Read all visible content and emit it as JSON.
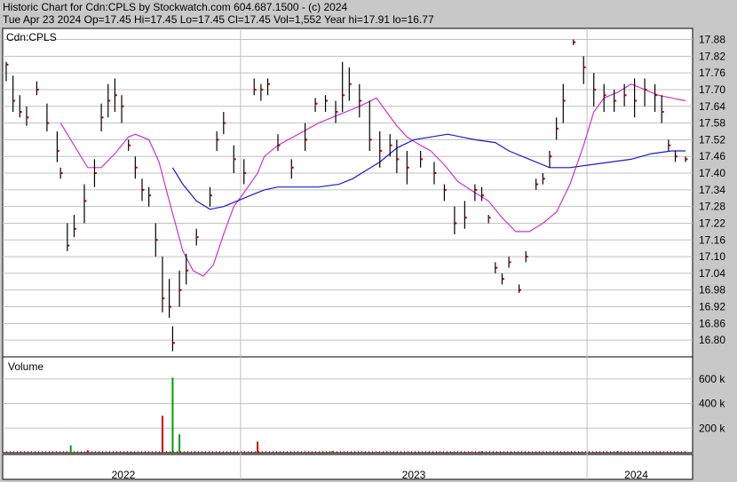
{
  "header": {
    "line1": "Historic Chart for Cdn:CPLS by Stockwatch.com 604.687.1500 - (c) 2024",
    "line2": "Tue Apr 23 2024  Op=17.45  Hi=17.45  Lo=17.45  Cl=17.45  Vol=1,552  Year hi=17.91  lo=16.77"
  },
  "chart_data": {
    "type": "line",
    "price_panel": {
      "label": "Cdn:CPLS",
      "ylim": [
        16.74,
        17.92
      ],
      "y_ticks": [
        "17.88",
        "17.82",
        "17.76",
        "17.70",
        "17.64",
        "17.58",
        "17.52",
        "17.46",
        "17.40",
        "17.34",
        "17.28",
        "17.22",
        "17.16",
        "17.10",
        "17.04",
        "16.98",
        "16.92",
        "16.86",
        "16.80"
      ],
      "x_labels": [
        "2022",
        "2023",
        "2024"
      ],
      "grid": true,
      "colors": {
        "price": "#000000",
        "close_dot": "#d40000",
        "ma_short": "#cc33cc",
        "ma_long": "#1a1acc"
      },
      "bars": [
        [
          0.0,
          17.8,
          17.73,
          17.79
        ],
        [
          0.01,
          17.75,
          17.62,
          17.66
        ],
        [
          0.02,
          17.68,
          17.6,
          17.62
        ],
        [
          0.03,
          17.64,
          17.57,
          17.6
        ],
        [
          0.045,
          17.73,
          17.68,
          17.7
        ],
        [
          0.06,
          17.65,
          17.55,
          17.58
        ],
        [
          0.075,
          17.55,
          17.44,
          17.48
        ],
        [
          0.08,
          17.42,
          17.38,
          17.4
        ],
        [
          0.09,
          17.22,
          17.12,
          17.14
        ],
        [
          0.1,
          17.25,
          17.17,
          17.2
        ],
        [
          0.115,
          17.36,
          17.22,
          17.3
        ],
        [
          0.13,
          17.45,
          17.35,
          17.4
        ],
        [
          0.14,
          17.65,
          17.55,
          17.6
        ],
        [
          0.15,
          17.72,
          17.6,
          17.66
        ],
        [
          0.16,
          17.74,
          17.62,
          17.68
        ],
        [
          0.17,
          17.68,
          17.58,
          17.64
        ],
        [
          0.18,
          17.52,
          17.48,
          17.5
        ],
        [
          0.19,
          17.46,
          17.38,
          17.42
        ],
        [
          0.2,
          17.38,
          17.3,
          17.34
        ],
        [
          0.21,
          17.35,
          17.28,
          17.32
        ],
        [
          0.22,
          17.22,
          17.1,
          17.16
        ],
        [
          0.23,
          17.1,
          16.9,
          16.95
        ],
        [
          0.24,
          17.02,
          16.88,
          16.92
        ],
        [
          0.245,
          16.85,
          16.76,
          16.79
        ],
        [
          0.255,
          17.05,
          16.92,
          16.98
        ],
        [
          0.265,
          17.11,
          17.0,
          17.05
        ],
        [
          0.28,
          17.2,
          17.14,
          17.17
        ],
        [
          0.3,
          17.35,
          17.28,
          17.32
        ],
        [
          0.31,
          17.55,
          17.48,
          17.52
        ],
        [
          0.32,
          17.62,
          17.54,
          17.58
        ],
        [
          0.335,
          17.5,
          17.4,
          17.45
        ],
        [
          0.35,
          17.45,
          17.36,
          17.4
        ],
        [
          0.365,
          17.74,
          17.68,
          17.7
        ],
        [
          0.375,
          17.72,
          17.66,
          17.7
        ],
        [
          0.385,
          17.74,
          17.68,
          17.72
        ],
        [
          0.4,
          17.54,
          17.48,
          17.5
        ],
        [
          0.42,
          17.45,
          17.38,
          17.42
        ],
        [
          0.44,
          17.58,
          17.48,
          17.52
        ],
        [
          0.455,
          17.67,
          17.62,
          17.65
        ],
        [
          0.47,
          17.68,
          17.62,
          17.66
        ],
        [
          0.485,
          17.66,
          17.58,
          17.62
        ],
        [
          0.495,
          17.8,
          17.62,
          17.68
        ],
        [
          0.505,
          17.78,
          17.66,
          17.72
        ],
        [
          0.52,
          17.72,
          17.6,
          17.66
        ],
        [
          0.535,
          17.66,
          17.48,
          17.52
        ],
        [
          0.55,
          17.55,
          17.42,
          17.48
        ],
        [
          0.565,
          17.54,
          17.46,
          17.5
        ],
        [
          0.575,
          17.52,
          17.4,
          17.45
        ],
        [
          0.59,
          17.48,
          17.36,
          17.42
        ],
        [
          0.61,
          17.48,
          17.42,
          17.45
        ],
        [
          0.63,
          17.44,
          17.36,
          17.4
        ],
        [
          0.645,
          17.36,
          17.3,
          17.34
        ],
        [
          0.66,
          17.28,
          17.18,
          17.22
        ],
        [
          0.675,
          17.3,
          17.2,
          17.24
        ],
        [
          0.69,
          17.36,
          17.3,
          17.34
        ],
        [
          0.7,
          17.35,
          17.3,
          17.32
        ],
        [
          0.71,
          17.25,
          17.22,
          17.24
        ],
        [
          0.72,
          17.08,
          17.04,
          17.06
        ],
        [
          0.73,
          17.04,
          17.0,
          17.02
        ],
        [
          0.74,
          17.1,
          17.06,
          17.08
        ],
        [
          0.755,
          17.0,
          16.97,
          16.98
        ],
        [
          0.765,
          17.12,
          17.08,
          17.1
        ],
        [
          0.78,
          17.38,
          17.34,
          17.36
        ],
        [
          0.79,
          17.4,
          17.36,
          17.38
        ],
        [
          0.8,
          17.48,
          17.42,
          17.46
        ],
        [
          0.81,
          17.6,
          17.52,
          17.56
        ],
        [
          0.82,
          17.72,
          17.58,
          17.66
        ],
        [
          0.835,
          17.88,
          17.86,
          17.87
        ],
        [
          0.85,
          17.82,
          17.72,
          17.78
        ],
        [
          0.865,
          17.76,
          17.64,
          17.7
        ],
        [
          0.88,
          17.72,
          17.62,
          17.68
        ],
        [
          0.895,
          17.7,
          17.62,
          17.66
        ],
        [
          0.91,
          17.72,
          17.64,
          17.68
        ],
        [
          0.925,
          17.74,
          17.6,
          17.66
        ],
        [
          0.94,
          17.74,
          17.64,
          17.7
        ],
        [
          0.955,
          17.72,
          17.62,
          17.68
        ],
        [
          0.965,
          17.68,
          17.58,
          17.62
        ],
        [
          0.975,
          17.52,
          17.48,
          17.5
        ],
        [
          0.985,
          17.48,
          17.44,
          17.46
        ],
        [
          1.0,
          17.46,
          17.44,
          17.45
        ]
      ],
      "ma_short": [
        [
          0.08,
          17.58
        ],
        [
          0.1,
          17.5
        ],
        [
          0.12,
          17.42
        ],
        [
          0.14,
          17.42
        ],
        [
          0.16,
          17.47
        ],
        [
          0.18,
          17.53
        ],
        [
          0.19,
          17.54
        ],
        [
          0.21,
          17.52
        ],
        [
          0.225,
          17.44
        ],
        [
          0.24,
          17.3
        ],
        [
          0.26,
          17.12
        ],
        [
          0.275,
          17.05
        ],
        [
          0.29,
          17.03
        ],
        [
          0.305,
          17.07
        ],
        [
          0.32,
          17.18
        ],
        [
          0.335,
          17.28
        ],
        [
          0.35,
          17.33
        ],
        [
          0.37,
          17.4
        ],
        [
          0.38,
          17.46
        ],
        [
          0.4,
          17.5
        ],
        [
          0.43,
          17.54
        ],
        [
          0.46,
          17.58
        ],
        [
          0.49,
          17.61
        ],
        [
          0.52,
          17.64
        ],
        [
          0.545,
          17.67
        ],
        [
          0.56,
          17.62
        ],
        [
          0.575,
          17.57
        ],
        [
          0.59,
          17.53
        ],
        [
          0.61,
          17.5
        ],
        [
          0.625,
          17.48
        ],
        [
          0.645,
          17.43
        ],
        [
          0.665,
          17.37
        ],
        [
          0.69,
          17.33
        ],
        [
          0.71,
          17.3
        ],
        [
          0.73,
          17.24
        ],
        [
          0.75,
          17.19
        ],
        [
          0.77,
          17.19
        ],
        [
          0.79,
          17.22
        ],
        [
          0.81,
          17.26
        ],
        [
          0.83,
          17.36
        ],
        [
          0.85,
          17.5
        ],
        [
          0.865,
          17.62
        ],
        [
          0.88,
          17.67
        ],
        [
          0.9,
          17.69
        ],
        [
          0.92,
          17.72
        ],
        [
          0.94,
          17.7
        ],
        [
          0.96,
          17.68
        ],
        [
          1.0,
          17.66
        ]
      ],
      "ma_long": [
        [
          0.245,
          17.42
        ],
        [
          0.26,
          17.36
        ],
        [
          0.28,
          17.3
        ],
        [
          0.3,
          17.27
        ],
        [
          0.32,
          17.28
        ],
        [
          0.34,
          17.3
        ],
        [
          0.36,
          17.32
        ],
        [
          0.38,
          17.34
        ],
        [
          0.4,
          17.35
        ],
        [
          0.43,
          17.35
        ],
        [
          0.46,
          17.35
        ],
        [
          0.49,
          17.36
        ],
        [
          0.51,
          17.38
        ],
        [
          0.53,
          17.41
        ],
        [
          0.55,
          17.44
        ],
        [
          0.575,
          17.49
        ],
        [
          0.6,
          17.52
        ],
        [
          0.625,
          17.53
        ],
        [
          0.65,
          17.54
        ],
        [
          0.67,
          17.53
        ],
        [
          0.69,
          17.52
        ],
        [
          0.72,
          17.51
        ],
        [
          0.74,
          17.48
        ],
        [
          0.77,
          17.45
        ],
        [
          0.8,
          17.42
        ],
        [
          0.83,
          17.42
        ],
        [
          0.86,
          17.43
        ],
        [
          0.89,
          17.44
        ],
        [
          0.92,
          17.45
        ],
        [
          0.95,
          17.47
        ],
        [
          0.98,
          17.48
        ],
        [
          1.0,
          17.48
        ]
      ]
    },
    "volume_panel": {
      "label": "Volume",
      "ylim": [
        0,
        780000
      ],
      "y_ticks": [
        "600 k",
        "400 k",
        "200 k"
      ],
      "grid": true,
      "colors": {
        "up": "#00a000",
        "down": "#d40000",
        "flat": "#000000"
      },
      "spikes": [
        [
          0.095,
          60000,
          "up"
        ],
        [
          0.23,
          300000,
          "down"
        ],
        [
          0.245,
          610000,
          "up"
        ],
        [
          0.255,
          150000,
          "up"
        ],
        [
          0.37,
          90000,
          "down"
        ],
        [
          0.12,
          20000,
          "down"
        ],
        [
          0.48,
          15000,
          "up"
        ],
        [
          0.7,
          12000,
          "down"
        ],
        [
          0.9,
          14000,
          "down"
        ]
      ]
    }
  }
}
